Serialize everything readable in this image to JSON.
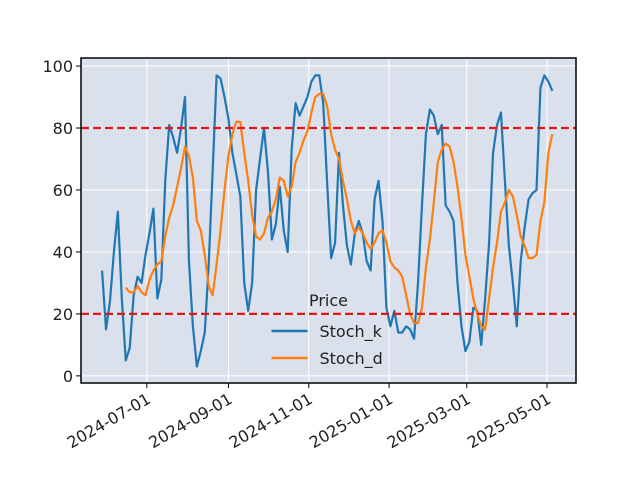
{
  "chart_data": {
    "type": "line",
    "x": [
      "2024-05-28",
      "2024-05-31",
      "2024-06-03",
      "2024-06-06",
      "2024-06-09",
      "2024-06-12",
      "2024-06-15",
      "2024-06-18",
      "2024-06-21",
      "2024-06-24",
      "2024-06-27",
      "2024-06-30",
      "2024-07-03",
      "2024-07-06",
      "2024-07-09",
      "2024-07-12",
      "2024-07-15",
      "2024-07-18",
      "2024-07-21",
      "2024-07-24",
      "2024-07-27",
      "2024-07-30",
      "2024-08-02",
      "2024-08-05",
      "2024-08-08",
      "2024-08-11",
      "2024-08-14",
      "2024-08-17",
      "2024-08-20",
      "2024-08-23",
      "2024-08-26",
      "2024-08-29",
      "2024-09-01",
      "2024-09-04",
      "2024-09-07",
      "2024-09-10",
      "2024-09-13",
      "2024-09-16",
      "2024-09-19",
      "2024-09-22",
      "2024-09-25",
      "2024-09-28",
      "2024-10-01",
      "2024-10-04",
      "2024-10-07",
      "2024-10-10",
      "2024-10-13",
      "2024-10-16",
      "2024-10-19",
      "2024-10-22",
      "2024-10-25",
      "2024-10-28",
      "2024-10-31",
      "2024-11-03",
      "2024-11-06",
      "2024-11-09",
      "2024-11-12",
      "2024-11-15",
      "2024-11-18",
      "2024-11-21",
      "2024-11-24",
      "2024-11-27",
      "2024-11-30",
      "2024-12-03",
      "2024-12-06",
      "2024-12-09",
      "2024-12-12",
      "2024-12-15",
      "2024-12-18",
      "2024-12-21",
      "2024-12-24",
      "2024-12-27",
      "2024-12-30",
      "2025-01-02",
      "2025-01-05",
      "2025-01-08",
      "2025-01-11",
      "2025-01-14",
      "2025-01-17",
      "2025-01-20",
      "2025-01-23",
      "2025-01-26",
      "2025-01-29",
      "2025-02-01",
      "2025-02-04",
      "2025-02-07",
      "2025-02-10",
      "2025-02-13",
      "2025-02-16",
      "2025-02-19",
      "2025-02-22",
      "2025-02-25",
      "2025-02-28",
      "2025-03-03",
      "2025-03-06",
      "2025-03-09",
      "2025-03-12",
      "2025-03-15",
      "2025-03-18",
      "2025-03-21",
      "2025-03-24",
      "2025-03-27",
      "2025-03-30",
      "2025-04-02",
      "2025-04-05",
      "2025-04-08",
      "2025-04-11",
      "2025-04-14",
      "2025-04-17",
      "2025-04-20",
      "2025-04-23",
      "2025-04-26",
      "2025-04-29",
      "2025-05-02",
      "2025-05-05"
    ],
    "series": [
      {
        "name": "Stoch_k",
        "color": "#1f77b4",
        "values": [
          34,
          15,
          24,
          40,
          53,
          25,
          5,
          9,
          26,
          32,
          30,
          39,
          46,
          54,
          25,
          31,
          63,
          81,
          77,
          72,
          80,
          90,
          37,
          16,
          3,
          8,
          14,
          36,
          66,
          97,
          96,
          90,
          83,
          72,
          65,
          58,
          30,
          21,
          30,
          60,
          70,
          80,
          66,
          44,
          49,
          61,
          47,
          40,
          73,
          88,
          84,
          87,
          90,
          95,
          97,
          97,
          88,
          62,
          38,
          43,
          72,
          55,
          42,
          36,
          46,
          50,
          46,
          37,
          34,
          57,
          63,
          50,
          22,
          16,
          21,
          14,
          14,
          16,
          15,
          12,
          30,
          55,
          78,
          86,
          84,
          78,
          81,
          55,
          53,
          50,
          30,
          16,
          8,
          11,
          22,
          21,
          10,
          25,
          43,
          72,
          81,
          85,
          63,
          42,
          30,
          16,
          37,
          48,
          57,
          59,
          60,
          93,
          97,
          95,
          92
        ]
      },
      {
        "name": "Stoch_d",
        "color": "#ff7f0e",
        "values": [
          null,
          null,
          null,
          null,
          null,
          null,
          28.5,
          27,
          27,
          29,
          27,
          26,
          31,
          34,
          36,
          37,
          45,
          51,
          55,
          61,
          67,
          74,
          71,
          64,
          50,
          47,
          39,
          29,
          26,
          36,
          47,
          60,
          71,
          78,
          82,
          82,
          72,
          63,
          52,
          45,
          44,
          46,
          51,
          53,
          57,
          64,
          63,
          58,
          61,
          69,
          72,
          76,
          79,
          85,
          90,
          91,
          91,
          87,
          78,
          73,
          70,
          63,
          57,
          50,
          46,
          48,
          46,
          43,
          41,
          43,
          46,
          47,
          43,
          37,
          35,
          34,
          32,
          26,
          20,
          17,
          17,
          22,
          35,
          44,
          56,
          69,
          73,
          75,
          74,
          69,
          61,
          51,
          39,
          32,
          25,
          20,
          16,
          15,
          25,
          35,
          43,
          53,
          56,
          60,
          58,
          52,
          45,
          42,
          38,
          38,
          39,
          50,
          56,
          72,
          78
        ]
      }
    ],
    "xlim": [
      "2024-05-12",
      "2025-05-23"
    ],
    "xticks": [
      "2024-07-01",
      "2024-09-01",
      "2024-11-01",
      "2025-01-01",
      "2025-03-01",
      "2025-05-01"
    ],
    "ylim": [
      -2.3,
      102.6
    ],
    "yticks": [
      0,
      20,
      40,
      60,
      80,
      100
    ],
    "hlines": [
      80,
      20
    ],
    "hline_color": "#e8141a",
    "grid": true,
    "legend_title": "Price",
    "legend_loc": "lower center"
  }
}
